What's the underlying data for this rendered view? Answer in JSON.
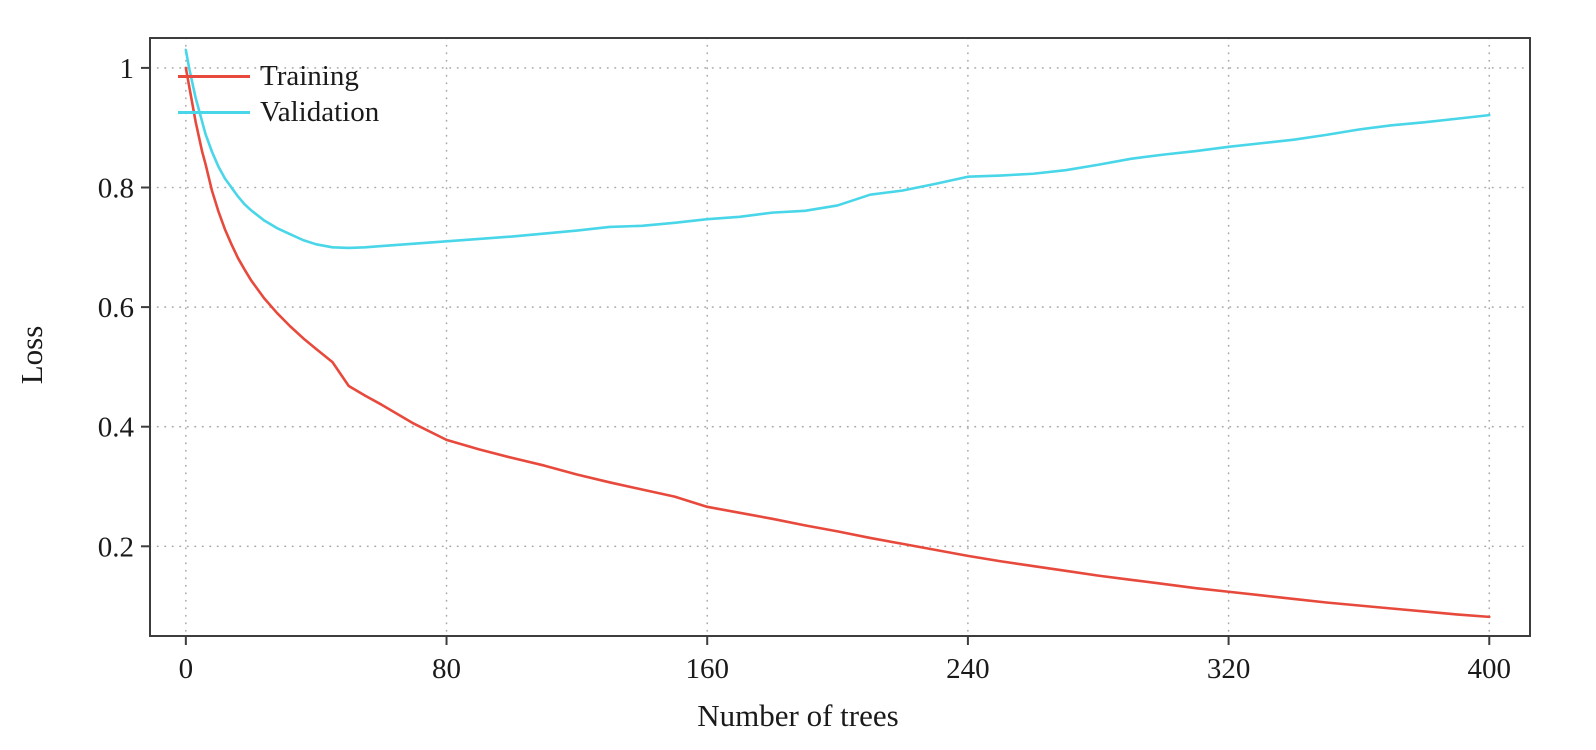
{
  "chart_data": {
    "type": "line",
    "title": "",
    "xlabel": "Number of trees",
    "ylabel": "Loss",
    "xlim": [
      -11,
      412.5
    ],
    "ylim": [
      0.05,
      1.05
    ],
    "grid": true,
    "legend_position": "top-left-inside",
    "xticks": {
      "values": [
        0,
        80,
        160,
        240,
        320,
        400
      ],
      "labels": [
        "0",
        "80",
        "160",
        "240",
        "320",
        "400"
      ]
    },
    "yticks": {
      "values": [
        0.2,
        0.4,
        0.6,
        0.8,
        1.0
      ],
      "labels": [
        "0.2",
        "0.4",
        "0.6",
        "0.8",
        "1"
      ]
    },
    "x": [
      0,
      1,
      2,
      3,
      4,
      5,
      6,
      8,
      10,
      12,
      14,
      16,
      18,
      20,
      24,
      28,
      32,
      36,
      40,
      45,
      50,
      55,
      60,
      70,
      80,
      90,
      100,
      110,
      120,
      130,
      140,
      150,
      160,
      170,
      180,
      190,
      200,
      210,
      220,
      230,
      240,
      250,
      260,
      270,
      280,
      290,
      300,
      310,
      320,
      330,
      340,
      350,
      360,
      370,
      380,
      390,
      400
    ],
    "series": [
      {
        "name": "Training",
        "color": "#e74a3c",
        "values": [
          1.0,
          0.97,
          0.94,
          0.91,
          0.885,
          0.86,
          0.84,
          0.795,
          0.76,
          0.73,
          0.705,
          0.682,
          0.663,
          0.645,
          0.615,
          0.59,
          0.568,
          0.548,
          0.53,
          0.508,
          0.468,
          0.452,
          0.437,
          0.405,
          0.378,
          0.362,
          0.348,
          0.335,
          0.32,
          0.307,
          0.295,
          0.283,
          0.266,
          0.256,
          0.246,
          0.235,
          0.225,
          0.214,
          0.204,
          0.194,
          0.184,
          0.175,
          0.167,
          0.159,
          0.151,
          0.144,
          0.137,
          0.13,
          0.124,
          0.118,
          0.112,
          0.106,
          0.101,
          0.096,
          0.091,
          0.086,
          0.082
        ]
      },
      {
        "name": "Validation",
        "color": "#49d6e8",
        "values": [
          1.03,
          1.0,
          0.975,
          0.95,
          0.93,
          0.91,
          0.89,
          0.86,
          0.835,
          0.815,
          0.8,
          0.785,
          0.772,
          0.762,
          0.745,
          0.732,
          0.722,
          0.712,
          0.705,
          0.7,
          0.699,
          0.7,
          0.702,
          0.706,
          0.71,
          0.714,
          0.718,
          0.723,
          0.728,
          0.734,
          0.736,
          0.741,
          0.747,
          0.751,
          0.758,
          0.761,
          0.77,
          0.788,
          0.795,
          0.806,
          0.818,
          0.82,
          0.823,
          0.829,
          0.838,
          0.848,
          0.855,
          0.861,
          0.868,
          0.874,
          0.88,
          0.888,
          0.897,
          0.904,
          0.909,
          0.915,
          0.921
        ]
      }
    ],
    "style": {
      "frame_color": "#3d3d3d",
      "grid_color": "#aaaaaa",
      "text_color": "#1a1a1a",
      "line_width": 2.6
    }
  }
}
